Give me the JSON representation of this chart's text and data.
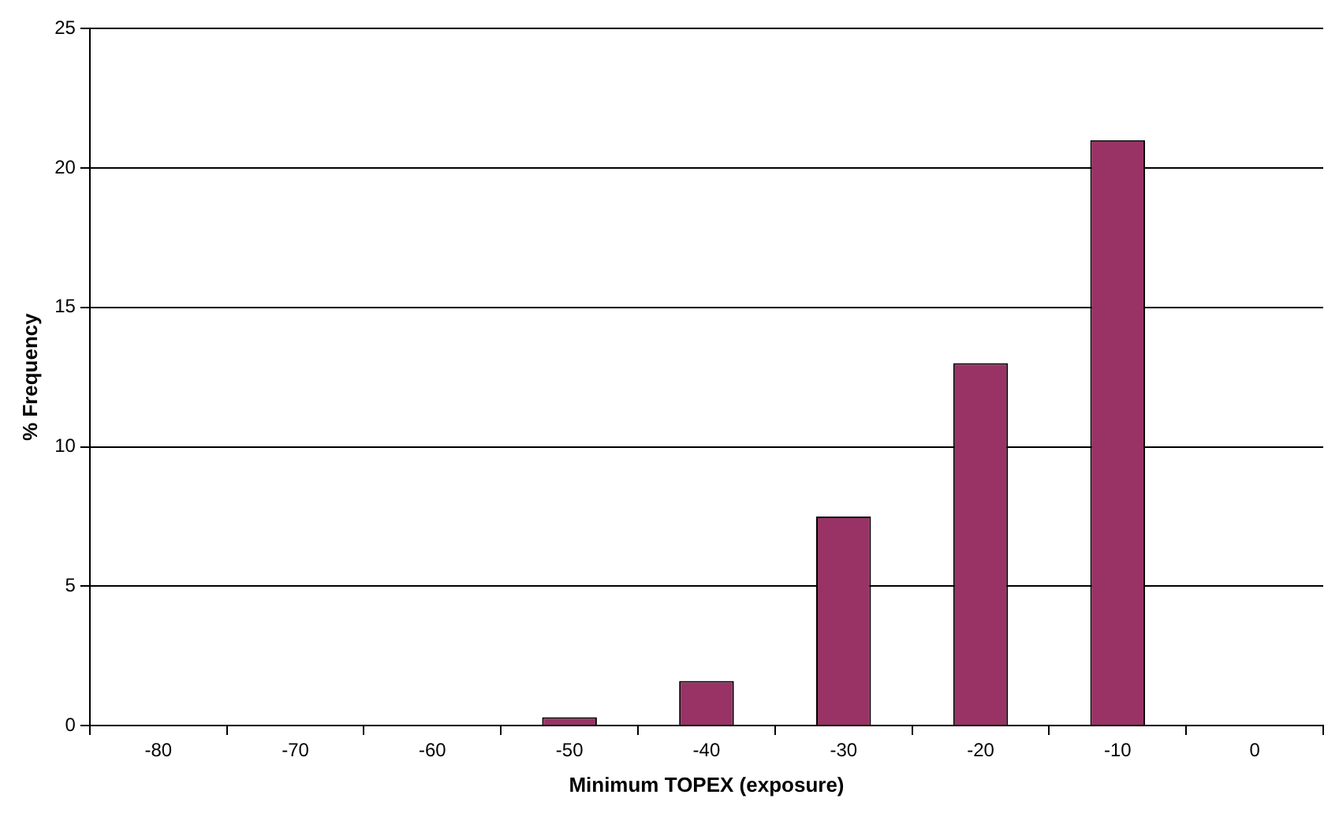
{
  "chart_data": {
    "type": "bar",
    "xlabel": "Minimum TOPEX (exposure)",
    "ylabel": "% Frequency",
    "categories": [
      "-80",
      "-70",
      "-60",
      "-50",
      "-40",
      "-30",
      "-20",
      "-10",
      "0"
    ],
    "values": [
      0,
      0,
      0,
      0.3,
      1.6,
      7.5,
      13,
      21,
      0
    ],
    "color": "#993366",
    "ylim": [
      0,
      25
    ],
    "yticks": [
      0,
      5,
      10,
      15,
      20,
      25
    ],
    "grid": "y"
  }
}
